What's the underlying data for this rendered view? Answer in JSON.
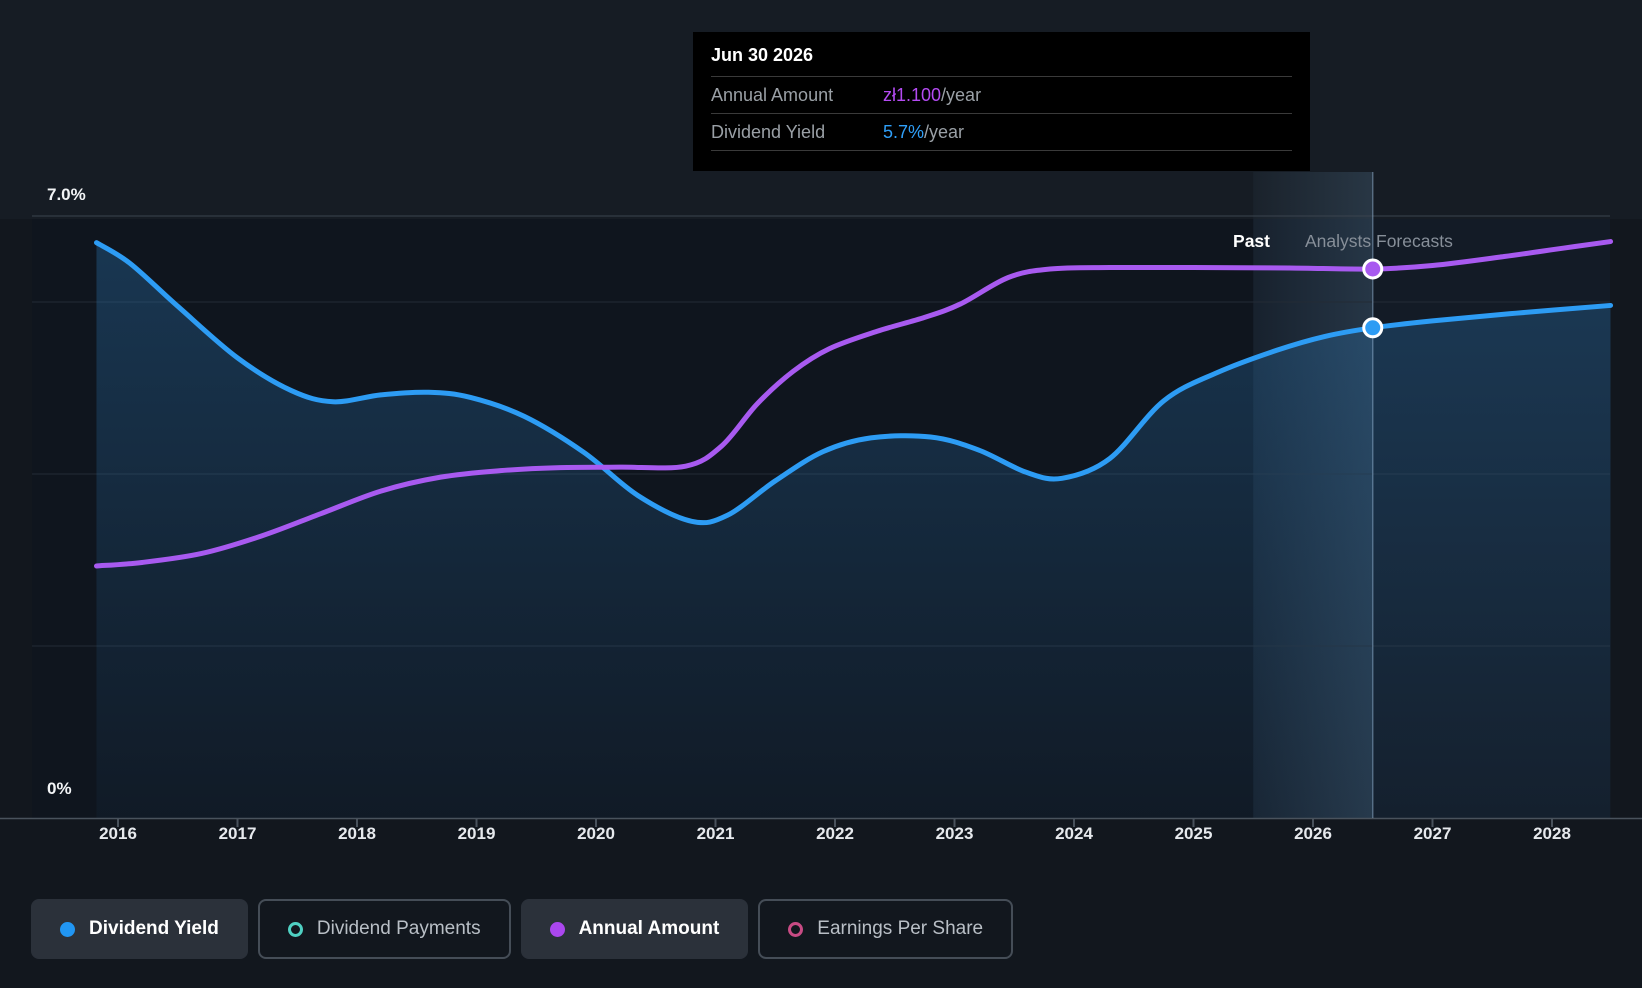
{
  "tooltip": {
    "date": "Jun 30 2026",
    "rows": [
      {
        "label": "Annual Amount",
        "value": "zł1.100",
        "suffix": "/year",
        "color": "#b44bf2"
      },
      {
        "label": "Dividend Yield",
        "value": "5.7%",
        "suffix": "/year",
        "color": "#2f9ff8"
      }
    ]
  },
  "axis": {
    "y_max_label": "7.0%",
    "y_min_label": "0%",
    "years": [
      2016,
      2017,
      2018,
      2019,
      2020,
      2021,
      2022,
      2023,
      2024,
      2025,
      2026,
      2027,
      2028
    ]
  },
  "annotations": {
    "past": "Past",
    "forecast": "Analysts Forecasts"
  },
  "legend": [
    {
      "label": "Dividend Yield",
      "marker": "dot",
      "color": "#2196f3",
      "active": true
    },
    {
      "label": "Dividend Payments",
      "marker": "ring",
      "color": "#4fd0c2",
      "active": false
    },
    {
      "label": "Annual Amount",
      "marker": "dot",
      "color": "#ab47ef",
      "active": true
    },
    {
      "label": "Earnings Per Share",
      "marker": "ring",
      "color": "#c84b84",
      "active": false
    }
  ],
  "chart_data": {
    "type": "line",
    "title": "Dividend history and forecast",
    "x_range": [
      2015.3,
      2028.5
    ],
    "ylim_percent": [
      0,
      7.0
    ],
    "gridlines_percent": [
      0,
      2,
      4,
      6,
      7
    ],
    "grid_on": true,
    "legend_position": "bottom",
    "past_forecast_boundary_x": 2025.5,
    "hover_x": 2026.5,
    "series": [
      {
        "name": "Dividend Yield",
        "axis": "percent",
        "color": "#2d9cf4",
        "area": true,
        "marker_at": [
          2026.5,
          5.7
        ],
        "points": [
          [
            2015.82,
            6.69
          ],
          [
            2016.1,
            6.45
          ],
          [
            2016.5,
            5.95
          ],
          [
            2017.0,
            5.35
          ],
          [
            2017.45,
            4.97
          ],
          [
            2017.8,
            4.84
          ],
          [
            2018.2,
            4.92
          ],
          [
            2018.6,
            4.95
          ],
          [
            2018.95,
            4.89
          ],
          [
            2019.4,
            4.67
          ],
          [
            2019.9,
            4.25
          ],
          [
            2020.35,
            3.75
          ],
          [
            2020.8,
            3.45
          ],
          [
            2021.1,
            3.52
          ],
          [
            2021.5,
            3.92
          ],
          [
            2021.9,
            4.26
          ],
          [
            2022.3,
            4.42
          ],
          [
            2022.8,
            4.43
          ],
          [
            2023.2,
            4.28
          ],
          [
            2023.6,
            4.02
          ],
          [
            2023.9,
            3.95
          ],
          [
            2024.3,
            4.18
          ],
          [
            2024.75,
            4.85
          ],
          [
            2025.2,
            5.18
          ],
          [
            2025.7,
            5.44
          ],
          [
            2026.1,
            5.6
          ],
          [
            2026.5,
            5.7
          ],
          [
            2027.0,
            5.78
          ],
          [
            2027.7,
            5.87
          ],
          [
            2028.49,
            5.96
          ]
        ]
      },
      {
        "name": "Annual Amount",
        "axis": "zloty",
        "color": "#a85af0",
        "area": false,
        "marker_at": [
          2026.5,
          1.1
        ],
        "points": [
          [
            2015.82,
            0.505
          ],
          [
            2016.2,
            0.512
          ],
          [
            2016.7,
            0.53
          ],
          [
            2017.2,
            0.565
          ],
          [
            2017.7,
            0.61
          ],
          [
            2018.2,
            0.655
          ],
          [
            2018.7,
            0.683
          ],
          [
            2019.2,
            0.696
          ],
          [
            2019.7,
            0.702
          ],
          [
            2020.2,
            0.703
          ],
          [
            2020.75,
            0.705
          ],
          [
            2021.05,
            0.745
          ],
          [
            2021.35,
            0.83
          ],
          [
            2021.65,
            0.895
          ],
          [
            2021.95,
            0.94
          ],
          [
            2022.35,
            0.975
          ],
          [
            2022.75,
            1.003
          ],
          [
            2023.05,
            1.03
          ],
          [
            2023.45,
            1.083
          ],
          [
            2023.8,
            1.1
          ],
          [
            2024.3,
            1.103
          ],
          [
            2025.0,
            1.103
          ],
          [
            2025.8,
            1.102
          ],
          [
            2026.5,
            1.1
          ],
          [
            2027.0,
            1.107
          ],
          [
            2027.6,
            1.125
          ],
          [
            2028.1,
            1.142
          ],
          [
            2028.49,
            1.155
          ]
        ]
      }
    ]
  },
  "colors": {
    "background": "#12171e",
    "top_strip": "#161c24",
    "plot_background": "#0f151e",
    "gridline": "#232b35",
    "gridline_top": "#3a434e",
    "axis_line": "#49525c",
    "blue_line": "#2d9cf4",
    "purple_line": "#a85af0",
    "hover_line": "rgba(150,185,215,0.45)"
  }
}
